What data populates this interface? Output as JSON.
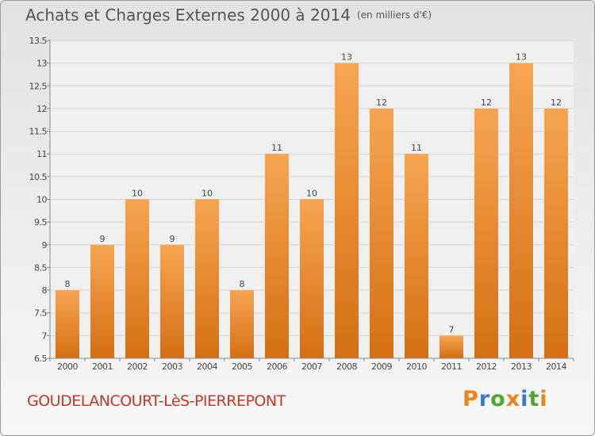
{
  "chart_data": {
    "type": "bar",
    "title": "Achats et Charges Externes 2000 à 2014",
    "subtitle": "(en milliers d'€)",
    "categories": [
      "2000",
      "2001",
      "2002",
      "2003",
      "2004",
      "2005",
      "2006",
      "2007",
      "2008",
      "2009",
      "2010",
      "2011",
      "2012",
      "2013",
      "2014"
    ],
    "values": [
      8,
      9,
      10,
      9,
      10,
      8,
      11,
      10,
      13,
      12,
      11,
      7,
      12,
      13,
      12
    ],
    "ylim": [
      6.5,
      13.5
    ],
    "yticks": [
      "6.5",
      "7",
      "7.5",
      "8",
      "8.5",
      "9",
      "9.5",
      "10",
      "10.5",
      "11",
      "11.5",
      "12",
      "12.5",
      "13",
      "13.5"
    ],
    "grid": true,
    "bar_color": "#e8862d",
    "xlabel": "",
    "ylabel": ""
  },
  "footer": {
    "commune": "GOUDELANCOURT-LèS-PIERREPONT",
    "logo": "Proxiti"
  },
  "colors": {
    "commune_text": "#c0392b",
    "title_text": "#555555"
  }
}
